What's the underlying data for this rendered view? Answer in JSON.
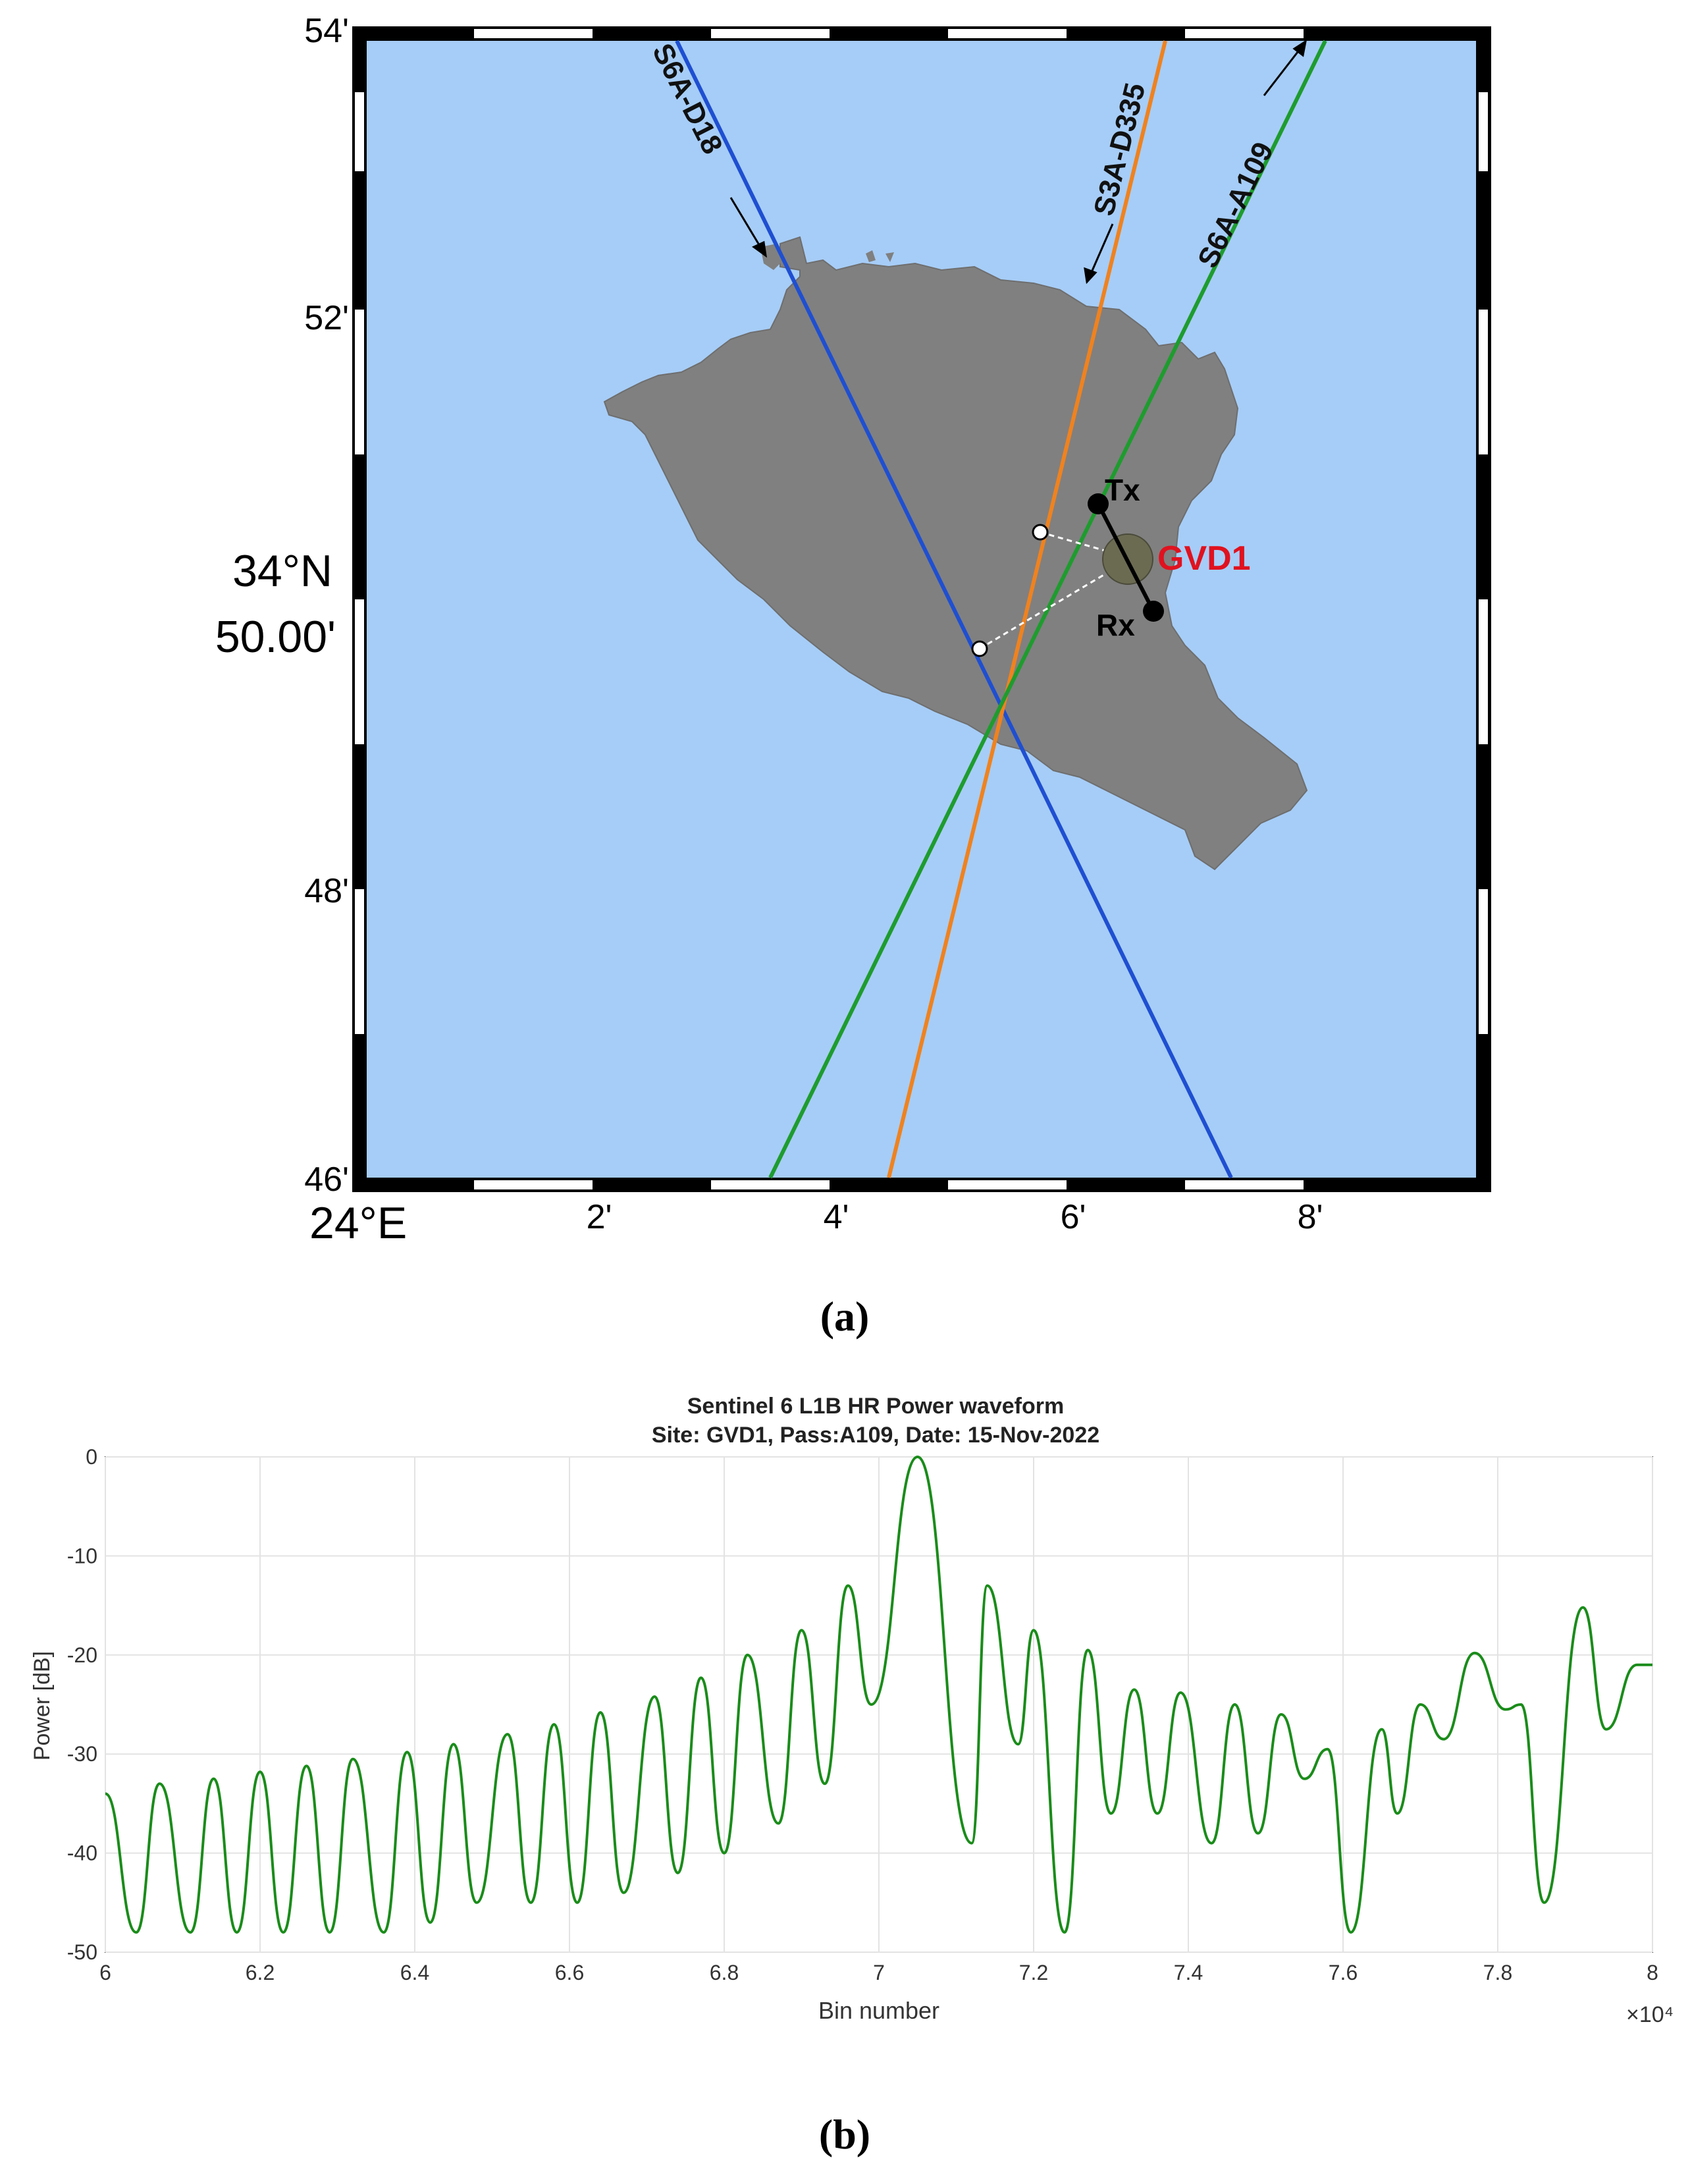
{
  "panel_a": {
    "caption": "(a)",
    "lat_ticks": [
      "54'",
      "52'",
      "34°N",
      "50.00'",
      "48'",
      "46'"
    ],
    "lon_ticks": [
      "24°E",
      "2'",
      "4'",
      "6'",
      "8'"
    ],
    "colors": {
      "sea": "#a6cdf7",
      "land": "#808080",
      "s6a_d18": "#1f4fd1",
      "s3a_d335": "#f0821e",
      "s6a_a109": "#1e9c2e",
      "site": "#e0121f"
    },
    "tracks": [
      {
        "label": "S6A-D18",
        "color": "#1f4fd1"
      },
      {
        "label": "S3A-D335",
        "color": "#f0821e"
      },
      {
        "label": "S6A-A109",
        "color": "#1e9c2e"
      }
    ],
    "markers": {
      "tx": "Tx",
      "rx": "Rx",
      "site": "GVD1"
    }
  },
  "panel_b": {
    "caption": "(b)",
    "chart_data": {
      "type": "line",
      "title": "Sentinel 6 L1B HR Power waveform",
      "subtitle": "Site: GVD1, Pass:A109, Date: 15-Nov-2022",
      "xlabel": "Bin number",
      "ylabel": "Power [dB]",
      "x_multiplier": "×10⁴",
      "x_ticks": [
        "6",
        "6.2",
        "6.4",
        "6.6",
        "6.8",
        "7",
        "7.2",
        "7.4",
        "7.6",
        "7.8",
        "8"
      ],
      "y_ticks": [
        "0",
        "-10",
        "-20",
        "-30",
        "-40",
        "-50"
      ],
      "xlim": [
        60000,
        80000
      ],
      "ylim": [
        -50,
        0
      ],
      "grid": true,
      "line_color": "#1a8c1a",
      "series": [
        {
          "x": [
            60000,
            60400,
            60700,
            61100,
            61400,
            61700,
            62000,
            62300,
            62600,
            62900,
            63200,
            63600,
            63900,
            64200,
            64500,
            64800,
            65200,
            65500,
            65800,
            66100,
            66400,
            66700,
            67100,
            67400,
            67700,
            68000,
            68300,
            68700,
            69000,
            69300,
            69600,
            69900,
            70500,
            71200,
            71400,
            71800,
            72000,
            72400,
            72700,
            73000,
            73300,
            73600,
            73900,
            74300,
            74600,
            74900,
            75200,
            75500,
            75800,
            76100,
            76500,
            76700,
            77000,
            77300,
            77700,
            78100,
            78300,
            78600,
            79100,
            79400,
            79800,
            80000
          ],
          "y": [
            -34,
            -48,
            -33,
            -48,
            -32.5,
            -48,
            -31.8,
            -48,
            -31.2,
            -48,
            -30.5,
            -48,
            -29.8,
            -47,
            -29,
            -45,
            -28,
            -45,
            -27,
            -45,
            -25.8,
            -44,
            -24.2,
            -42,
            -22.3,
            -40,
            -20,
            -37,
            -17.5,
            -33,
            -13,
            -25,
            0,
            -39,
            -13,
            -29,
            -17.5,
            -48,
            -19.5,
            -36,
            -23.5,
            -36,
            -23.8,
            -39,
            -25,
            -38,
            -26,
            -32.5,
            -29.5,
            -48,
            -27.5,
            -36,
            -25,
            -28.5,
            -19.8,
            -25.5,
            -25,
            -45,
            -15.2,
            -27.5,
            -21,
            -21
          ]
        }
      ]
    }
  }
}
